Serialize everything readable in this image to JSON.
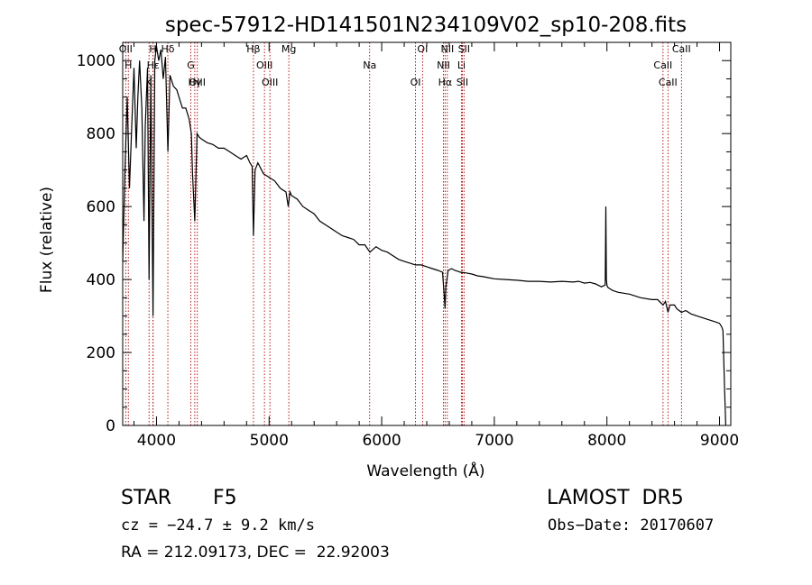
{
  "chart_data": {
    "type": "line",
    "title": "spec-57912-HD141501N234109V02_sp10-208.fits",
    "xlabel": "Wavelength (Å)",
    "ylabel": "Flux (relative)",
    "xlim": [
      3700,
      9100
    ],
    "ylim": [
      0,
      1050
    ],
    "xticks": [
      4000,
      5000,
      6000,
      7000,
      8000,
      9000
    ],
    "yticks": [
      0,
      200,
      400,
      600,
      800,
      1000
    ],
    "grid": false,
    "series": [
      {
        "x": [
          3700,
          3720,
          3740,
          3760,
          3780,
          3800,
          3820,
          3835,
          3850,
          3870,
          3889,
          3900,
          3920,
          3934,
          3950,
          3969,
          3985,
          4000,
          4020,
          4040,
          4060,
          4080,
          4101,
          4120,
          4150,
          4180,
          4200,
          4230,
          4260,
          4290,
          4310,
          4320,
          4340,
          4360,
          4380,
          4400,
          4450,
          4500,
          4550,
          4600,
          4650,
          4700,
          4750,
          4800,
          4830,
          4850,
          4861,
          4875,
          4900,
          4950,
          5000,
          5050,
          5100,
          5150,
          5170,
          5185,
          5200,
          5250,
          5300,
          5350,
          5400,
          5450,
          5500,
          5550,
          5600,
          5650,
          5700,
          5750,
          5800,
          5850,
          5895,
          5950,
          6000,
          6050,
          6100,
          6150,
          6200,
          6250,
          6300,
          6350,
          6400,
          6450,
          6500,
          6540,
          6555,
          6563,
          6570,
          6590,
          6620,
          6650,
          6700,
          6750,
          6800,
          6850,
          6900,
          6950,
          7000,
          7100,
          7200,
          7300,
          7400,
          7500,
          7600,
          7700,
          7750,
          7800,
          7850,
          7900,
          7950,
          7985,
          7990,
          7995,
          8000,
          8005,
          8010,
          8050,
          8100,
          8200,
          8300,
          8400,
          8450,
          8498,
          8520,
          8542,
          8560,
          8600,
          8620,
          8662,
          8700,
          8750,
          8800,
          8850,
          8900,
          8950,
          9000,
          9020,
          9030,
          9045,
          9055
        ],
        "values": [
          450,
          700,
          900,
          650,
          820,
          980,
          760,
          900,
          1000,
          870,
          560,
          820,
          980,
          400,
          960,
          300,
          1000,
          1040,
          1000,
          1030,
          950,
          1010,
          750,
          960,
          930,
          920,
          900,
          870,
          870,
          840,
          800,
          690,
          560,
          800,
          790,
          785,
          775,
          770,
          760,
          760,
          750,
          740,
          730,
          740,
          720,
          710,
          520,
          700,
          720,
          690,
          680,
          670,
          650,
          640,
          600,
          640,
          630,
          620,
          600,
          590,
          580,
          560,
          550,
          540,
          530,
          520,
          515,
          510,
          495,
          495,
          475,
          490,
          480,
          475,
          465,
          455,
          450,
          445,
          440,
          440,
          435,
          430,
          425,
          420,
          360,
          320,
          380,
          425,
          430,
          425,
          420,
          418,
          415,
          410,
          408,
          405,
          402,
          400,
          398,
          395,
          395,
          393,
          395,
          393,
          395,
          390,
          392,
          388,
          380,
          385,
          600,
          400,
          385,
          380,
          378,
          370,
          365,
          360,
          350,
          345,
          345,
          330,
          340,
          310,
          330,
          330,
          320,
          310,
          315,
          305,
          300,
          295,
          290,
          285,
          280,
          270,
          260,
          100,
          0
        ]
      }
    ],
    "lines": [
      {
        "label": "OII",
        "x": 3727
      },
      {
        "label": "H",
        "x": 3750
      },
      {
        "label": "K",
        "x": 3934
      },
      {
        "label": "H",
        "x": 3969
      },
      {
        "label": "Hε",
        "x": 3970
      },
      {
        "label": "Hγ",
        "x": 4340
      },
      {
        "label": "Hδ",
        "x": 4101
      },
      {
        "label": "G",
        "x": 4305
      },
      {
        "label": "OIII",
        "x": 4363
      },
      {
        "label": "Hβ",
        "x": 4861
      },
      {
        "label": "OIII",
        "x": 4959
      },
      {
        "label": "OIII",
        "x": 5007
      },
      {
        "label": "Mg",
        "x": 5175
      },
      {
        "label": "Na",
        "x": 5893
      },
      {
        "label": "OI",
        "x": 6300
      },
      {
        "label": "OI",
        "x": 6363
      },
      {
        "label": "NII",
        "x": 6548
      },
      {
        "label": "Hα",
        "x": 6563
      },
      {
        "label": "NII",
        "x": 6583
      },
      {
        "label": "Li",
        "x": 6708
      },
      {
        "label": "SII",
        "x": 6716
      },
      {
        "label": "SII",
        "x": 6731
      },
      {
        "label": "CaII",
        "x": 8498
      },
      {
        "label": "CaII",
        "x": 8542
      },
      {
        "label": "CaII",
        "x": 8662
      }
    ],
    "colors": {
      "spectrum": "#000000",
      "lines": "#b00000",
      "axes": "#000000"
    }
  },
  "info": {
    "object_class": "STAR",
    "subclass": "F5",
    "survey": "LAMOST  DR5",
    "cz": "cz = −24.7 ± 9.2 km/s",
    "obs_date": "Obs−Date: 20170607",
    "coords": "RA = 212.09173, DEC =  22.92003"
  }
}
